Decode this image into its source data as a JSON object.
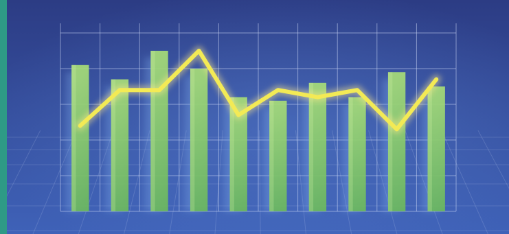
{
  "chart_data": {
    "type": "bar",
    "title": "",
    "xlabel": "",
    "ylabel": "",
    "ylim": [
      0,
      5
    ],
    "grid": true,
    "legend": "none",
    "categories": [
      "",
      "",
      "",
      "",
      "",
      "",
      "",
      "",
      "",
      ""
    ],
    "series": [
      {
        "type": "bar",
        "values": [
          4.1,
          3.7,
          4.5,
          4.0,
          3.2,
          3.1,
          3.6,
          3.2,
          3.9,
          3.5
        ]
      },
      {
        "type": "line",
        "values": [
          2.4,
          3.4,
          3.4,
          4.5,
          2.7,
          3.4,
          3.2,
          3.4,
          2.3,
          3.7
        ]
      }
    ]
  },
  "colors": {
    "background_top": "#2c3c84",
    "background_bottom": "#3f62b8",
    "left_stripe": "#2e9a86",
    "grid": "#cdd8f5",
    "bar": "#8fcf6b",
    "line": "#f3ea55",
    "line_glow": "#ffe98a"
  }
}
